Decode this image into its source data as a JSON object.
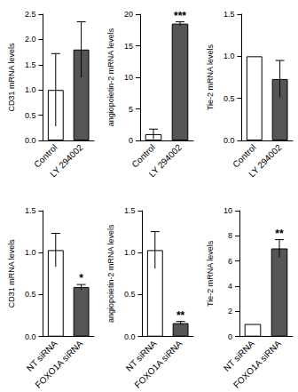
{
  "chart_data": [
    {
      "type": "bar",
      "y_label": "CD31 mRNA levels",
      "categories": [
        "Control",
        "LY 294002"
      ],
      "values": [
        1.0,
        1.8
      ],
      "errors": [
        0.72,
        0.55
      ],
      "colors": [
        "#ffffff",
        "#555555"
      ],
      "ylim": [
        0,
        2.5
      ],
      "yticks": [
        {
          "value": 0,
          "label": "0.0"
        },
        {
          "value": 0.5,
          "label": "0.5"
        },
        {
          "value": 1,
          "label": "1.0"
        },
        {
          "value": 1.5,
          "label": "1.5"
        },
        {
          "value": 2,
          "label": "2.0"
        },
        {
          "value": 2.5,
          "label": "2.5"
        }
      ],
      "grid": false
    },
    {
      "type": "bar",
      "y_label": "angiopoietin-2 mRNA levels",
      "categories": [
        "Control",
        "LY 294002"
      ],
      "values": [
        1.0,
        18.5
      ],
      "errors": [
        0.8,
        0.3
      ],
      "colors": [
        "#ffffff",
        "#555555"
      ],
      "ylim": [
        0,
        20
      ],
      "yticks": [
        0,
        5,
        10,
        15,
        20
      ],
      "annotations": [
        {
          "category": "LY 294002",
          "text": "***"
        }
      ],
      "grid": false
    },
    {
      "type": "bar",
      "y_label": "Tie-2 mRNA levels",
      "categories": [
        "Control",
        "LY 294002"
      ],
      "values": [
        1.0,
        0.73
      ],
      "errors": [
        0,
        0.22
      ],
      "colors": [
        "#ffffff",
        "#555555"
      ],
      "ylim": [
        0,
        1.5
      ],
      "yticks": [
        {
          "value": 0,
          "label": "0.0"
        },
        {
          "value": 0.5,
          "label": "0.5"
        },
        {
          "value": 1,
          "label": "1.0"
        },
        {
          "value": 1.5,
          "label": "1.5"
        }
      ],
      "grid": false
    },
    {
      "type": "bar",
      "y_label": "CD31 mRNA levels",
      "categories": [
        "NT siRNA",
        "FOXO1A siRNA"
      ],
      "values": [
        1.03,
        0.59
      ],
      "errors": [
        0.2,
        0.03
      ],
      "colors": [
        "#ffffff",
        "#555555"
      ],
      "ylim": [
        0,
        1.5
      ],
      "yticks": [
        {
          "value": 0,
          "label": "0.0"
        },
        {
          "value": 0.5,
          "label": "0.5"
        },
        {
          "value": 1,
          "label": "1.0"
        },
        {
          "value": 1.5,
          "label": "1.5"
        }
      ],
      "annotations": [
        {
          "category": "FOXO1A siRNA",
          "text": "*"
        }
      ],
      "grid": false
    },
    {
      "type": "bar",
      "y_label": "angiopoietin-2 mRNA levels",
      "categories": [
        "NT siRNA",
        "FOXO1A siRNA"
      ],
      "values": [
        1.03,
        0.16
      ],
      "errors": [
        0.22,
        0.02
      ],
      "colors": [
        "#ffffff",
        "#555555"
      ],
      "ylim": [
        0,
        1.5
      ],
      "yticks": [
        {
          "value": 0,
          "label": "0.0"
        },
        {
          "value": 0.5,
          "label": "0.5"
        },
        {
          "value": 1,
          "label": "1.0"
        },
        {
          "value": 1.5,
          "label": "1.5"
        }
      ],
      "annotations": [
        {
          "category": "FOXO1A siRNA",
          "text": "**"
        }
      ],
      "grid": false
    },
    {
      "type": "bar",
      "y_label": "Tie-2 mRNA levels",
      "categories": [
        "NT siRNA",
        "FOXO1A siRNA"
      ],
      "values": [
        1.0,
        7.0
      ],
      "errors": [
        0,
        0.7
      ],
      "colors": [
        "#ffffff",
        "#555555"
      ],
      "ylim": [
        0,
        10
      ],
      "yticks": [
        0,
        2,
        4,
        6,
        8,
        10
      ],
      "annotations": [
        {
          "category": "FOXO1A siRNA",
          "text": "**"
        }
      ],
      "grid": false
    }
  ]
}
